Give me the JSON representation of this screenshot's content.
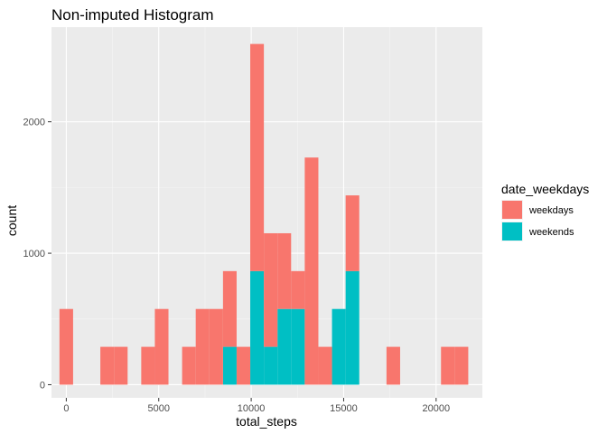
{
  "chart_data": {
    "type": "bar",
    "title": "Non-imputed Histogram",
    "xlabel": "total_steps",
    "ylabel": "count",
    "xlim": [
      -800,
      22500
    ],
    "ylim": [
      -100,
      2720
    ],
    "x_ticks": [
      0,
      5000,
      10000,
      15000,
      20000
    ],
    "y_ticks": [
      0,
      1000,
      2000
    ],
    "bin_width": 736.9,
    "stacked": true,
    "legend": {
      "title": "date_weekdays",
      "position": "right"
    },
    "series": [
      {
        "name": "weekdays",
        "color": "#F8766D",
        "bins": [
          {
            "x": 0,
            "count": 576
          },
          {
            "x": 2211,
            "count": 288
          },
          {
            "x": 2948,
            "count": 288
          },
          {
            "x": 4422,
            "count": 288
          },
          {
            "x": 5158,
            "count": 576
          },
          {
            "x": 6632,
            "count": 288
          },
          {
            "x": 7369,
            "count": 576
          },
          {
            "x": 8106,
            "count": 576
          },
          {
            "x": 8843,
            "count": 576
          },
          {
            "x": 9580,
            "count": 288
          },
          {
            "x": 10317,
            "count": 1728
          },
          {
            "x": 11053,
            "count": 864
          },
          {
            "x": 11790,
            "count": 576
          },
          {
            "x": 12527,
            "count": 288
          },
          {
            "x": 13264,
            "count": 1728
          },
          {
            "x": 14001,
            "count": 288
          },
          {
            "x": 15475,
            "count": 576
          },
          {
            "x": 17685,
            "count": 288
          },
          {
            "x": 20633,
            "count": 288
          },
          {
            "x": 21370,
            "count": 288
          }
        ]
      },
      {
        "name": "weekends",
        "color": "#00BFC4",
        "bins": [
          {
            "x": 8843,
            "count": 288
          },
          {
            "x": 10317,
            "count": 864
          },
          {
            "x": 11053,
            "count": 288
          },
          {
            "x": 11790,
            "count": 576
          },
          {
            "x": 12527,
            "count": 576
          },
          {
            "x": 14738,
            "count": 576
          },
          {
            "x": 15475,
            "count": 864
          }
        ]
      }
    ]
  }
}
